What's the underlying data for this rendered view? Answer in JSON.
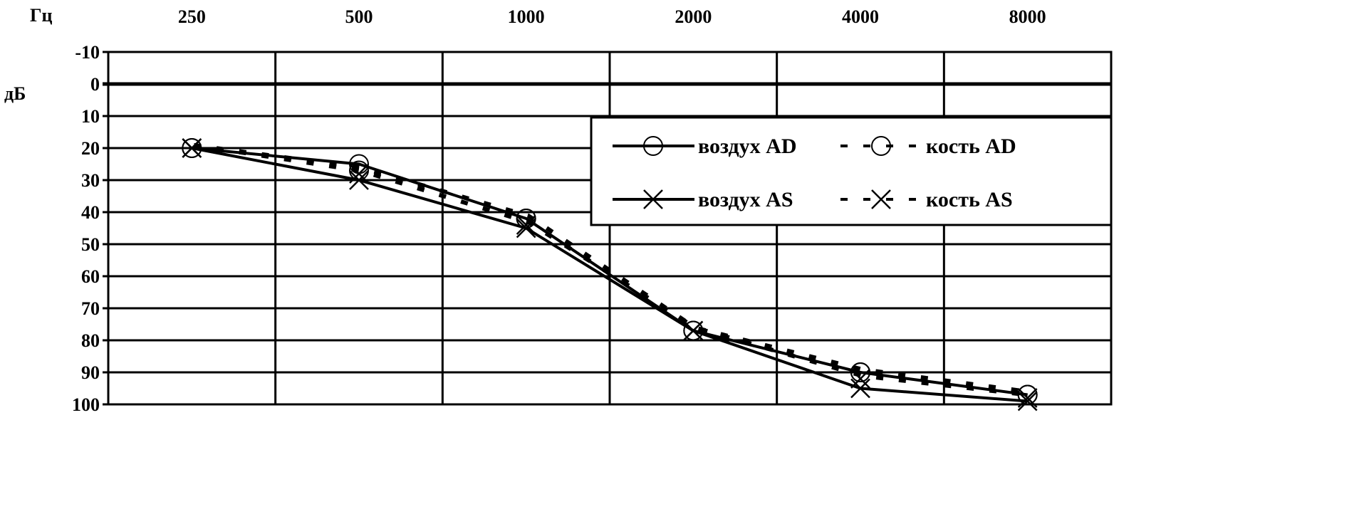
{
  "chart_data": {
    "type": "line",
    "x_unit_label": "Гц",
    "y_unit_label": "дБ",
    "categories": [
      "250",
      "500",
      "1000",
      "2000",
      "4000",
      "8000"
    ],
    "y_ticks": [
      "-10",
      "0",
      "10",
      "20",
      "30",
      "40",
      "50",
      "60",
      "70",
      "80",
      "90",
      "100"
    ],
    "ylim": [
      -10,
      100
    ],
    "y_inverted": true,
    "grid": true,
    "legend_position": "top-right",
    "series": [
      {
        "name": "воздух AD",
        "marker": "circle",
        "line": "solid",
        "values": [
          20,
          25,
          42,
          77,
          90,
          97
        ]
      },
      {
        "name": "кость AD",
        "marker": "circle",
        "line": "dashed",
        "values": [
          20,
          27,
          42,
          77,
          90,
          97
        ]
      },
      {
        "name": "воздух AS",
        "marker": "cross",
        "line": "solid",
        "values": [
          20,
          30,
          45,
          77,
          95,
          99
        ]
      },
      {
        "name": "кость AS",
        "marker": "cross",
        "line": "dashed",
        "values": [
          20,
          28,
          44,
          77,
          92,
          98
        ]
      }
    ],
    "colors": {
      "line": "#000000",
      "background": "#ffffff"
    }
  }
}
